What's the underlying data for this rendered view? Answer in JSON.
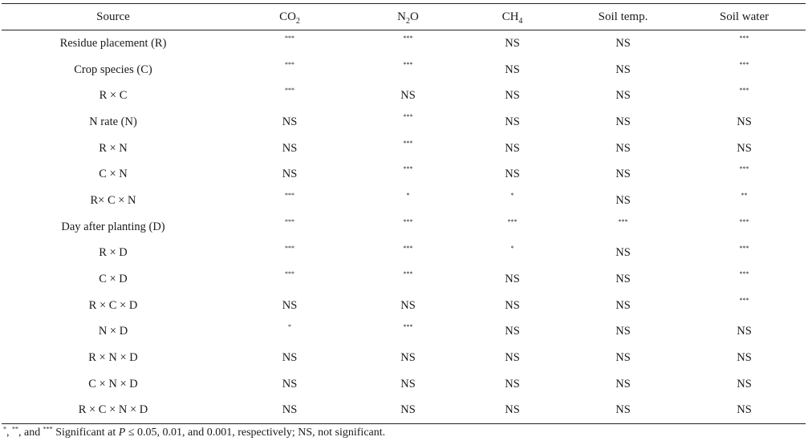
{
  "table": {
    "headers": {
      "source": "Source",
      "co2_base": "CO",
      "co2_sub": "2",
      "n2o_base": "N",
      "n2o_sub": "2",
      "n2o_tail": "O",
      "ch4_base": "CH",
      "ch4_sub": "4",
      "soil_temp": "Soil temp.",
      "soil_water": "Soil water"
    },
    "rows": [
      {
        "source": "Residue placement (R)",
        "co2": "***",
        "n2o": "***",
        "ch4": "NS",
        "soil_temp": "NS",
        "soil_water": "***"
      },
      {
        "source": "Crop species (C)",
        "co2": "***",
        "n2o": "***",
        "ch4": "NS",
        "soil_temp": "NS",
        "soil_water": "***"
      },
      {
        "source": "R × C",
        "co2": "***",
        "n2o": "NS",
        "ch4": "NS",
        "soil_temp": "NS",
        "soil_water": "***"
      },
      {
        "source": "N rate (N)",
        "co2": "NS",
        "n2o": "***",
        "ch4": "NS",
        "soil_temp": "NS",
        "soil_water": "NS"
      },
      {
        "source": "R × N",
        "co2": "NS",
        "n2o": "***",
        "ch4": "NS",
        "soil_temp": "NS",
        "soil_water": "NS"
      },
      {
        "source": "C × N",
        "co2": "NS",
        "n2o": "***",
        "ch4": "NS",
        "soil_temp": "NS",
        "soil_water": "***"
      },
      {
        "source": "R× C × N",
        "co2": "***",
        "n2o": "*",
        "ch4": "*",
        "soil_temp": "NS",
        "soil_water": "**"
      },
      {
        "source": "Day after planting (D)",
        "co2": "***",
        "n2o": "***",
        "ch4": "***",
        "soil_temp": "***",
        "soil_water": "***"
      },
      {
        "source": "R × D",
        "co2": "***",
        "n2o": "***",
        "ch4": "*",
        "soil_temp": "NS",
        "soil_water": "***"
      },
      {
        "source": "C × D",
        "co2": "***",
        "n2o": "***",
        "ch4": "NS",
        "soil_temp": "NS",
        "soil_water": "***"
      },
      {
        "source": "R × C × D",
        "co2": "NS",
        "n2o": "NS",
        "ch4": "NS",
        "soil_temp": "NS",
        "soil_water": "***"
      },
      {
        "source": "N × D",
        "co2": "*",
        "n2o": "***",
        "ch4": "NS",
        "soil_temp": "NS",
        "soil_water": "NS"
      },
      {
        "source": "R × N × D",
        "co2": "NS",
        "n2o": "NS",
        "ch4": "NS",
        "soil_temp": "NS",
        "soil_water": "NS"
      },
      {
        "source": "C × N × D",
        "co2": "NS",
        "n2o": "NS",
        "ch4": "NS",
        "soil_temp": "NS",
        "soil_water": "NS"
      },
      {
        "source": "R × C × N × D",
        "co2": "NS",
        "n2o": "NS",
        "ch4": "NS",
        "soil_temp": "NS",
        "soil_water": "NS"
      }
    ]
  },
  "footnote": {
    "sup1": "*",
    "sep1": ", ",
    "sup2": "**",
    "sep2": ", and ",
    "sup3": "***",
    "text_a": " Significant at ",
    "p_symbol": "P",
    "text_b": " ≤ 0.05, 0.01, and 0.001, respectively; NS, not significant."
  }
}
